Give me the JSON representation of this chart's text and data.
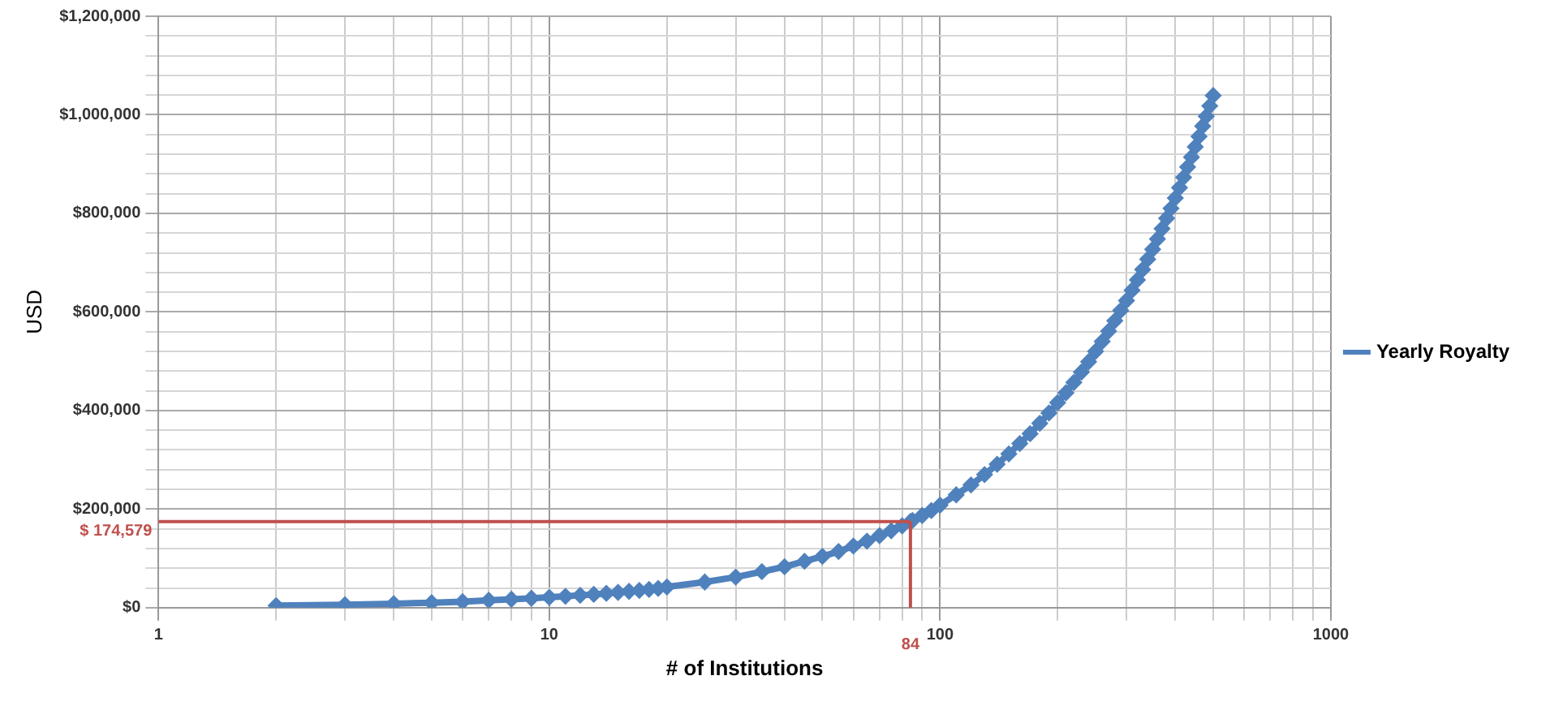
{
  "chart_data": {
    "type": "line",
    "xlabel": "# of Institutions",
    "ylabel": "USD",
    "log": "x",
    "grid": true,
    "legend": "right",
    "marker": "diamond",
    "line_style": "solid",
    "xlim": [
      1,
      1000
    ],
    "xticks": [
      1,
      {
        "value": 2,
        "label": null
      },
      {
        "value": 3,
        "label": null
      },
      {
        "value": 4,
        "label": null
      },
      {
        "value": 5,
        "label": null
      },
      {
        "value": 6,
        "label": null
      },
      {
        "value": 7,
        "label": null
      },
      {
        "value": 8,
        "label": null
      },
      {
        "value": 9,
        "label": null
      },
      10,
      {
        "value": 20,
        "label": null
      },
      {
        "value": 30,
        "label": null
      },
      {
        "value": 40,
        "label": null
      },
      {
        "value": 50,
        "label": null
      },
      {
        "value": 60,
        "label": null
      },
      {
        "value": 70,
        "label": null
      },
      {
        "value": 80,
        "label": null
      },
      {
        "value": 90,
        "label": null
      },
      100,
      {
        "value": 200,
        "label": null
      },
      {
        "value": 300,
        "label": null
      },
      {
        "value": 400,
        "label": null
      },
      {
        "value": 500,
        "label": null
      },
      {
        "value": 600,
        "label": null
      },
      {
        "value": 700,
        "label": null
      },
      {
        "value": 800,
        "label": null
      },
      {
        "value": 900,
        "label": null
      },
      1000
    ],
    "ylim": [
      0,
      1200000
    ],
    "yticks": [
      {
        "value": 0,
        "label": "$0"
      },
      {
        "value": 40000,
        "label": null
      },
      {
        "value": 80000,
        "label": null
      },
      {
        "value": 120000,
        "label": null
      },
      {
        "value": 160000,
        "label": null
      },
      {
        "value": 200000,
        "label": "$200,000"
      },
      {
        "value": 240000,
        "label": null
      },
      {
        "value": 280000,
        "label": null
      },
      {
        "value": 320000,
        "label": null
      },
      {
        "value": 360000,
        "label": null
      },
      {
        "value": 400000,
        "label": "$400,000"
      },
      {
        "value": 440000,
        "label": null
      },
      {
        "value": 480000,
        "label": null
      },
      {
        "value": 520000,
        "label": null
      },
      {
        "value": 560000,
        "label": null
      },
      {
        "value": 600000,
        "label": "$600,000"
      },
      {
        "value": 640000,
        "label": null
      },
      {
        "value": 680000,
        "label": null
      },
      {
        "value": 720000,
        "label": null
      },
      {
        "value": 760000,
        "label": null
      },
      {
        "value": 800000,
        "label": "$800,000"
      },
      {
        "value": 840000,
        "label": null
      },
      {
        "value": 880000,
        "label": null
      },
      {
        "value": 920000,
        "label": null
      },
      {
        "value": 960000,
        "label": null
      },
      {
        "value": 1000000,
        "label": "$1,000,000"
      },
      {
        "value": 1040000,
        "label": null
      },
      {
        "value": 1080000,
        "label": null
      },
      {
        "value": 1120000,
        "label": null
      },
      {
        "value": 1160000,
        "label": null
      },
      {
        "value": 1200000,
        "label": "$1,200,000"
      }
    ],
    "x": [
      2,
      3,
      4,
      5,
      6,
      7,
      8,
      9,
      10,
      11,
      12,
      13,
      14,
      15,
      16,
      17,
      18,
      19,
      20,
      25,
      30,
      35,
      40,
      45,
      50,
      55,
      60,
      65,
      70,
      75,
      80,
      84,
      85,
      90,
      95,
      100,
      110,
      120,
      130,
      140,
      150,
      160,
      170,
      180,
      190,
      200,
      210,
      220,
      230,
      240,
      250,
      260,
      270,
      280,
      290,
      300,
      310,
      320,
      330,
      340,
      350,
      360,
      370,
      380,
      390,
      400,
      410,
      420,
      430,
      440,
      450,
      460,
      470,
      480,
      490,
      500
    ],
    "series": [
      {
        "name": "Yearly Royalty",
        "color": "#4f81bd",
        "values": [
          4000,
          6000,
          8000,
          10000,
          12000,
          15000,
          17000,
          19000,
          21000,
          23000,
          25000,
          27000,
          29000,
          31000,
          33000,
          35000,
          37000,
          39000,
          42000,
          52000,
          62000,
          73000,
          83000,
          94000,
          104000,
          114000,
          125000,
          135000,
          146000,
          156000,
          166000,
          174579,
          177000,
          187000,
          197000,
          208000,
          229000,
          249000,
          270000,
          291000,
          312000,
          333000,
          353000,
          374000,
          395000,
          416000,
          436000,
          457000,
          478000,
          499000,
          520000,
          540000,
          561000,
          582000,
          603000,
          623000,
          644000,
          665000,
          686000,
          707000,
          727000,
          748000,
          769000,
          790000,
          810000,
          831000,
          852000,
          873000,
          894000,
          914000,
          935000,
          956000,
          977000,
          997000,
          1018000,
          1039000
        ]
      }
    ],
    "ref_lines": [
      {
        "axis": "y",
        "value": 174579,
        "label": "$ 174,579",
        "color": "#c0504d"
      },
      {
        "axis": "x",
        "value": 84,
        "label": "84",
        "color": "#c0504d"
      }
    ]
  }
}
